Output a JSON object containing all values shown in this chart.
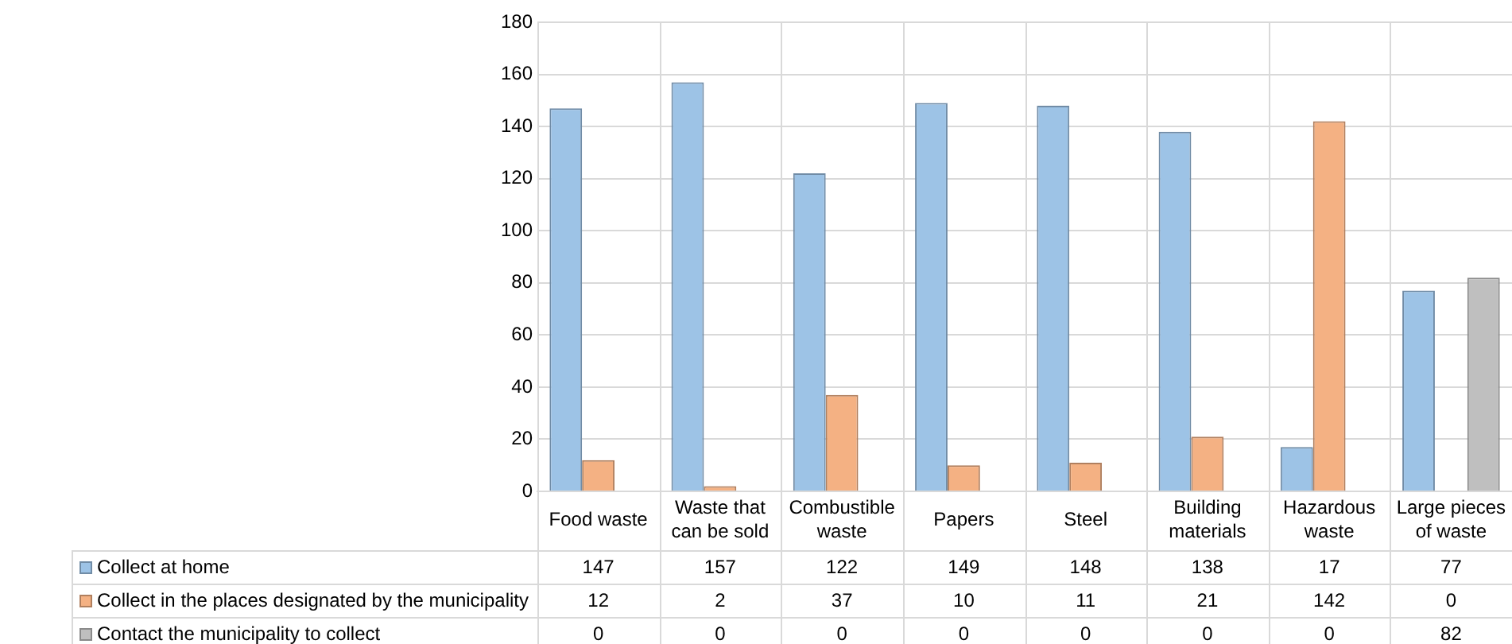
{
  "chart_data": {
    "type": "bar",
    "categories": [
      "Food waste",
      "Waste that can be sold",
      "Combustible waste",
      "Papers",
      "Steel",
      "Building materials",
      "Hazardous waste",
      "Large pieces of waste"
    ],
    "series": [
      {
        "name": "Collect at home",
        "color": "#9dc3e6",
        "values": [
          147,
          157,
          122,
          149,
          148,
          138,
          17,
          77
        ]
      },
      {
        "name": "Collect in the places designated by the municipality",
        "color": "#f4b183",
        "values": [
          12,
          2,
          37,
          10,
          11,
          21,
          142,
          0
        ]
      },
      {
        "name": "Contact the municipality to collect",
        "color": "#bfbfbf",
        "values": [
          0,
          0,
          0,
          0,
          0,
          0,
          0,
          82
        ]
      }
    ],
    "ylim": [
      0,
      180
    ],
    "yticks": [
      0,
      20,
      40,
      60,
      80,
      100,
      120,
      140,
      160,
      180
    ],
    "grid": true,
    "legend": "bottom",
    "data_labels": true
  }
}
